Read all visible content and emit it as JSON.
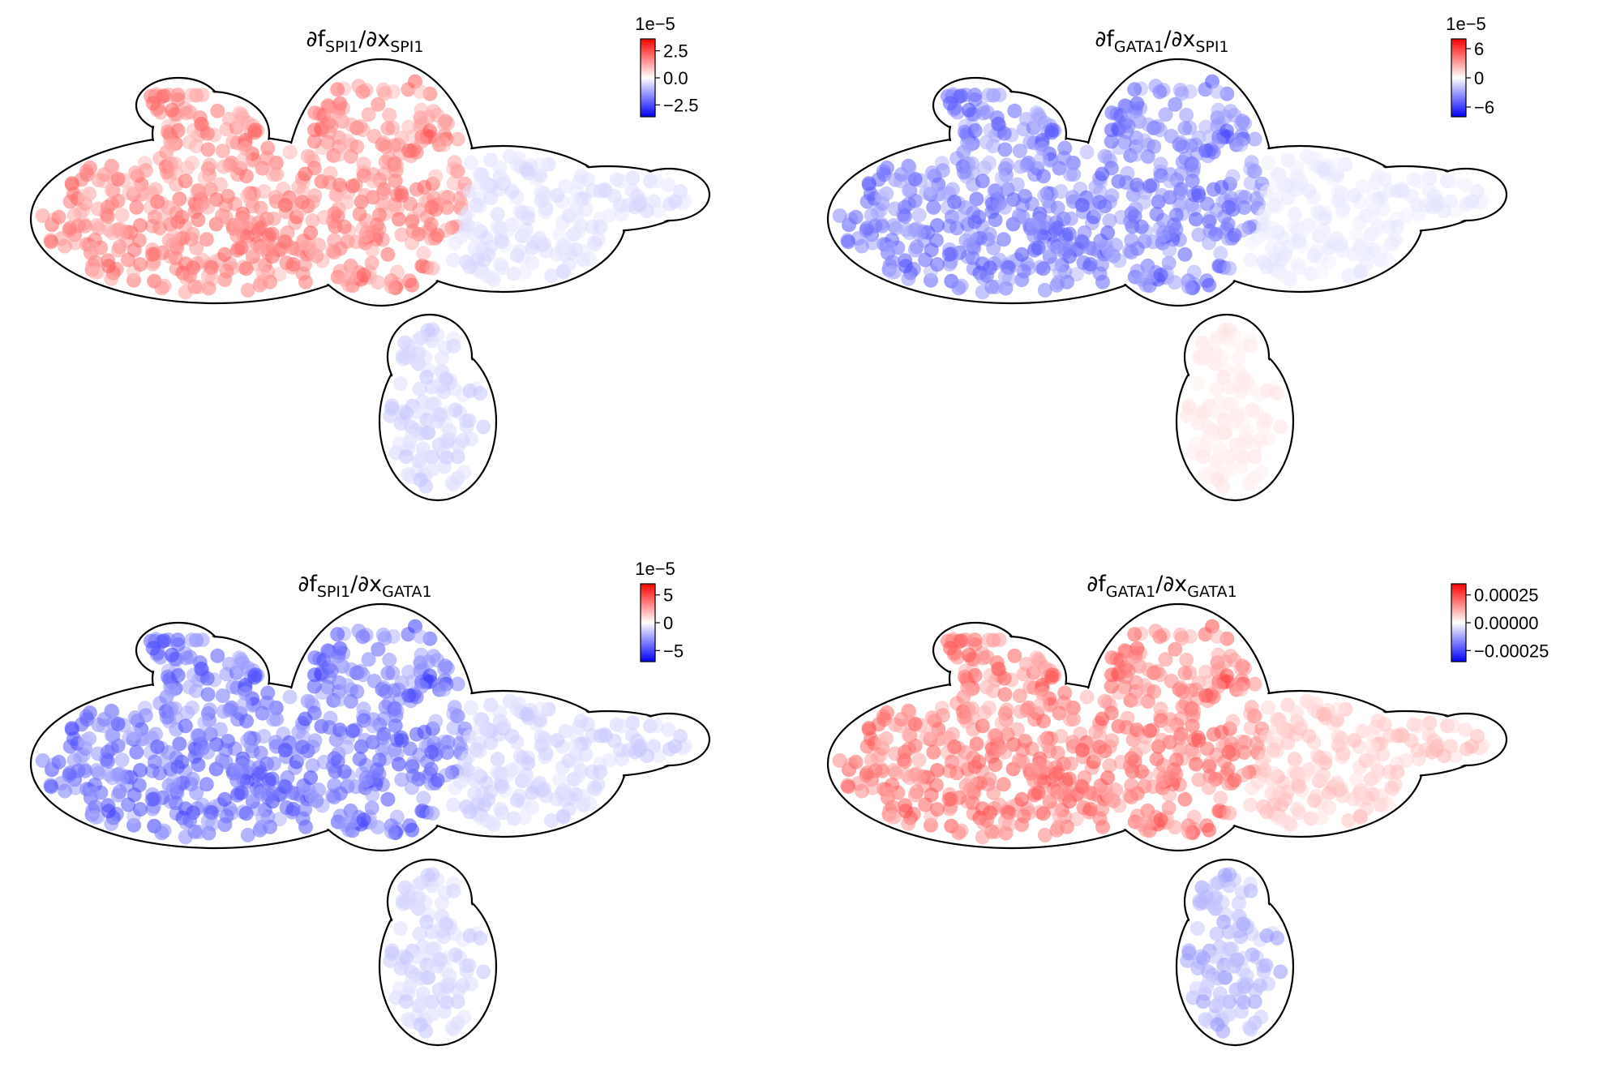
{
  "chart_data": [
    {
      "type": "scatter",
      "title_parts": {
        "f": "∂f",
        "f_sub": "SPI1",
        "x": "/∂x",
        "x_sub": "SPI1"
      },
      "colormap": "bwr",
      "colorbar": {
        "scale_label": "1e−5",
        "range": [
          -3.6,
          3.6
        ],
        "ticks": [
          2.5,
          0.0,
          -2.5
        ],
        "tick_labels": [
          "2.5",
          "0.0",
          "−2.5"
        ]
      },
      "pattern": {
        "trunk": 0.55,
        "right_arm": -0.15,
        "lower_lobe": -0.2
      }
    },
    {
      "type": "scatter",
      "title_parts": {
        "f": "∂f",
        "f_sub": "GATA1",
        "x": "/∂x",
        "x_sub": "SPI1"
      },
      "colormap": "bwr",
      "colorbar": {
        "scale_label": "1e−5",
        "range": [
          -8,
          8
        ],
        "ticks": [
          6,
          0,
          -6
        ],
        "tick_labels": [
          "6",
          "0",
          "−6"
        ]
      },
      "pattern": {
        "trunk": -0.6,
        "right_arm": -0.1,
        "lower_lobe": 0.1
      }
    },
    {
      "type": "scatter",
      "title_parts": {
        "f": "∂f",
        "f_sub": "SPI1",
        "x": "/∂x",
        "x_sub": "GATA1"
      },
      "colormap": "bwr",
      "colorbar": {
        "scale_label": "1e−5",
        "range": [
          -7,
          7
        ],
        "ticks": [
          5,
          0,
          -5
        ],
        "tick_labels": [
          "5",
          "0",
          "−5"
        ]
      },
      "pattern": {
        "trunk": -0.65,
        "right_arm": -0.2,
        "lower_lobe": -0.2
      }
    },
    {
      "type": "scatter",
      "title_parts": {
        "f": "∂f",
        "f_sub": "GATA1",
        "x": "/∂x",
        "x_sub": "GATA1"
      },
      "colormap": "bwr",
      "colorbar": {
        "scale_label": "",
        "range": [
          -0.00035,
          0.00035
        ],
        "ticks": [
          0.00025,
          0.0,
          -0.00025
        ],
        "tick_labels": [
          "0.00025",
          "0.00000",
          "−0.00025"
        ]
      },
      "pattern": {
        "trunk": 0.6,
        "right_arm": 0.25,
        "lower_lobe": -0.35
      }
    }
  ],
  "colors": {
    "negative": "#0000ff",
    "neutral": "#ffffff",
    "positive": "#ff0000",
    "outline": "#000000"
  }
}
